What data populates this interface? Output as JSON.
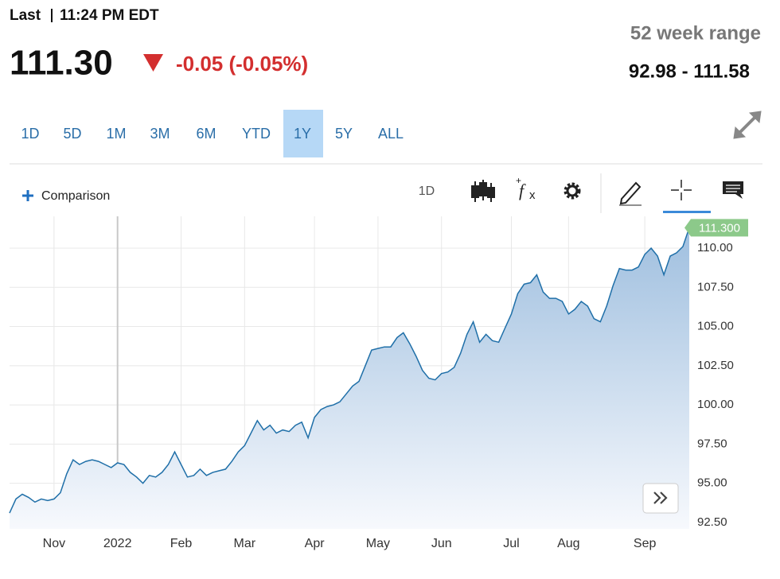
{
  "header": {
    "last_label": "Last",
    "time": "11:24 PM EDT",
    "price": "111.30",
    "change": "-0.05 (-0.05%)",
    "range_title": "52 week range",
    "range_value": "92.98 - 111.58"
  },
  "ranges": [
    {
      "label": "1D"
    },
    {
      "label": "5D"
    },
    {
      "label": "1M"
    },
    {
      "label": "3M"
    },
    {
      "label": "6M"
    },
    {
      "label": "YTD"
    },
    {
      "label": "1Y",
      "selected": true
    },
    {
      "label": "5Y"
    },
    {
      "label": "ALL"
    }
  ],
  "toolbar": {
    "comparison": "Comparison",
    "interval": "1D"
  },
  "chart_data": {
    "type": "area",
    "color": "#1f6fa8",
    "grid": true,
    "categories": [
      null,
      null,
      null,
      null,
      null,
      null,
      null,
      "Nov",
      null,
      null,
      null,
      null,
      null,
      null,
      null,
      null,
      null,
      "2022",
      null,
      null,
      null,
      null,
      null,
      null,
      null,
      null,
      null,
      "Feb",
      null,
      null,
      null,
      null,
      null,
      null,
      null,
      null,
      null,
      "Mar",
      null,
      null,
      null,
      null,
      null,
      null,
      null,
      null,
      null,
      null,
      "Apr",
      null,
      null,
      null,
      null,
      null,
      null,
      null,
      null,
      null,
      "May",
      null,
      null,
      null,
      null,
      null,
      null,
      null,
      null,
      null,
      "Jun",
      null,
      null,
      null,
      null,
      null,
      null,
      null,
      null,
      null,
      null,
      "Jul",
      null,
      null,
      null,
      null,
      null,
      null,
      null,
      null,
      "Aug",
      null,
      null,
      null,
      null,
      null,
      null,
      null,
      null,
      null,
      null,
      null,
      "Sep",
      null,
      null,
      null,
      null,
      null,
      null,
      null
    ],
    "values": [
      93.1,
      94.0,
      94.3,
      94.1,
      93.8,
      94.0,
      93.9,
      94.0,
      94.4,
      95.6,
      96.5,
      96.2,
      96.4,
      96.5,
      96.4,
      96.2,
      96.0,
      96.3,
      96.2,
      95.7,
      95.4,
      95.0,
      95.5,
      95.4,
      95.7,
      96.2,
      97.0,
      96.2,
      95.4,
      95.5,
      95.9,
      95.5,
      95.7,
      95.8,
      95.9,
      96.4,
      97.0,
      97.4,
      98.2,
      99.0,
      98.4,
      98.7,
      98.2,
      98.4,
      98.3,
      98.7,
      98.9,
      97.9,
      99.2,
      99.7,
      99.9,
      100.0,
      100.2,
      100.7,
      101.2,
      101.5,
      102.5,
      103.5,
      103.6,
      103.7,
      103.7,
      104.3,
      104.6,
      103.9,
      103.1,
      102.2,
      101.7,
      101.6,
      102.0,
      102.1,
      102.4,
      103.3,
      104.5,
      105.3,
      104.0,
      104.5,
      104.1,
      104.0,
      104.9,
      105.8,
      107.1,
      107.7,
      107.8,
      108.3,
      107.2,
      106.8,
      106.8,
      106.6,
      105.8,
      106.1,
      106.6,
      106.3,
      105.5,
      105.3,
      106.3,
      107.6,
      108.7,
      108.6,
      108.6,
      108.8,
      109.6,
      110.0,
      109.5,
      108.3,
      109.5,
      109.7,
      110.1,
      111.3
    ],
    "value_labels": [
      null,
      null,
      null,
      null,
      null,
      null,
      null,
      null,
      null,
      null,
      null,
      null,
      null,
      null,
      null,
      null,
      null,
      null,
      null,
      null,
      null,
      null,
      null,
      null,
      null,
      null,
      null,
      null,
      null,
      null,
      null,
      null,
      null,
      null,
      null,
      null,
      null,
      null,
      null,
      null,
      null,
      null,
      null,
      null,
      null,
      null,
      null,
      null,
      null,
      null,
      null,
      null,
      null,
      null,
      null,
      null,
      null,
      null,
      null,
      null,
      null,
      null,
      null,
      null,
      null,
      null,
      null,
      null,
      null,
      null,
      null,
      null,
      null,
      null,
      null,
      null,
      null,
      null,
      null,
      null,
      null,
      null,
      null,
      null,
      null,
      null,
      null,
      null,
      null,
      null,
      null,
      null,
      null,
      null,
      null,
      null,
      null,
      null,
      null,
      null,
      null,
      null,
      null,
      null,
      null,
      null,
      null,
      "111.300"
    ],
    "ylim": [
      92.09,
      112.03
    ],
    "yticks": [
      {
        "value": 92.5,
        "label": "92.50"
      },
      {
        "value": 95,
        "label": "95.00"
      },
      {
        "value": 97.5,
        "label": "97.50"
      },
      {
        "value": 100,
        "label": "100.00"
      },
      {
        "value": 102.5,
        "label": "102.50"
      },
      {
        "value": 105,
        "label": "105.00"
      },
      {
        "value": 107.5,
        "label": "107.50"
      },
      {
        "value": 110,
        "label": "110.00"
      }
    ]
  }
}
